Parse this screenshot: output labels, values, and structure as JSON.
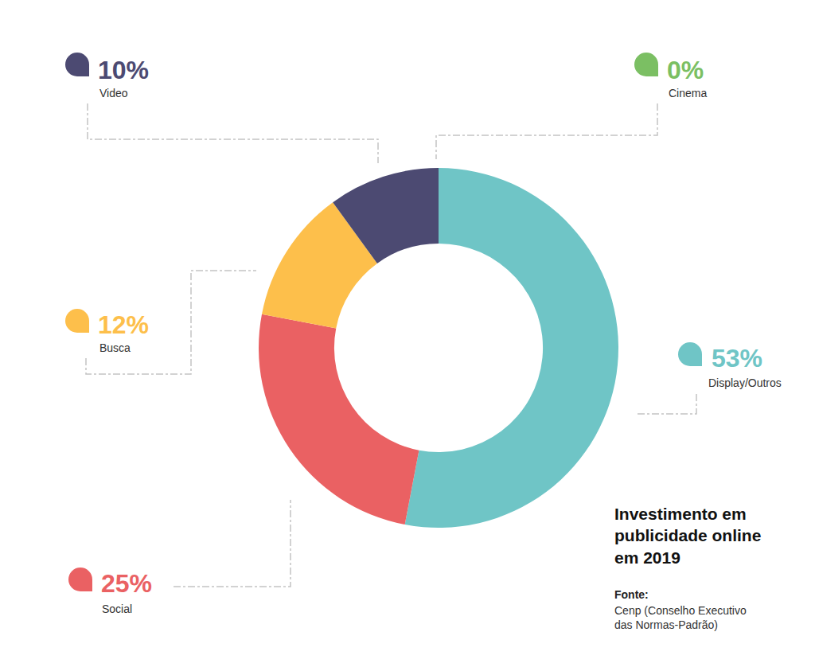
{
  "chart_data": {
    "type": "pie",
    "title": "Investimento em publicidade online em 2019",
    "source_label": "Fonte:",
    "source": "Cenp (Conselho Executivo das Normas-Padrão)",
    "categories": [
      "Display/Outros",
      "Social",
      "Busca",
      "Video",
      "Cinema"
    ],
    "values": [
      53,
      25,
      12,
      10,
      0
    ],
    "value_labels": [
      "53%",
      "25%",
      "12%",
      "10%",
      "0%"
    ],
    "colors": [
      "#6fc5c6",
      "#ea6163",
      "#fdbf4b",
      "#4c4a72",
      "#7bbf63"
    ],
    "data_labels": true
  }
}
